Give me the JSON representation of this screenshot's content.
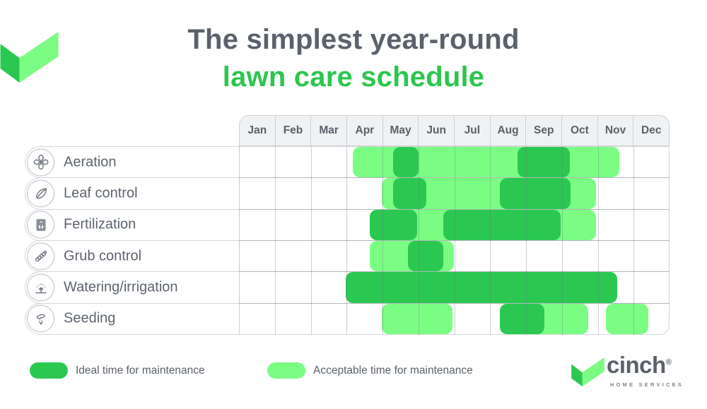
{
  "title": {
    "line1": "The simplest year-round",
    "line2": "lawn care schedule"
  },
  "colors": {
    "ideal_green": "#2bc851",
    "acceptable_green": "#7bfc83",
    "title_gray": "#5b616b",
    "title_green": "#2dc64f",
    "text_gray": "#5a6069",
    "header_bg": "#f0f1f2",
    "grid_border": "#ccd0d5",
    "row_border": "#d5d9dd"
  },
  "months": [
    "Jan",
    "Feb",
    "Mar",
    "Apr",
    "May",
    "Jun",
    "Jul",
    "Aug",
    "Sep",
    "Oct",
    "Nov",
    "Dec"
  ],
  "legend": {
    "ideal_label": "Ideal time for maintenance",
    "acceptable_label": "Acceptable time for maintenance"
  },
  "brand": {
    "name": "cinch",
    "registered": "®",
    "tagline": "HOME SERVICES"
  },
  "chart_data": {
    "type": "gantt",
    "title": "The simplest year-round lawn care schedule",
    "x_axis": {
      "categories": [
        "Jan",
        "Feb",
        "Mar",
        "Apr",
        "May",
        "Jun",
        "Jul",
        "Aug",
        "Sep",
        "Oct",
        "Nov",
        "Dec"
      ],
      "domain": [
        0,
        12
      ],
      "note": "month-index scale: 0 = start of Jan, 12 = end of Dec"
    },
    "legend_position": "bottom-left",
    "series_legend": [
      {
        "name": "Ideal time for maintenance",
        "style": "dark-green"
      },
      {
        "name": "Acceptable time for maintenance",
        "style": "light-green"
      }
    ],
    "rows": [
      {
        "task": "Aeration",
        "icon": "fan-icon",
        "acceptable": [
          [
            3.18,
            10.6
          ]
        ],
        "ideal": [
          [
            4.3,
            5.0
          ],
          [
            7.76,
            9.22
          ]
        ]
      },
      {
        "task": "Leaf control",
        "icon": "leaf-icon",
        "acceptable": [
          [
            3.98,
            9.96
          ]
        ],
        "ideal": [
          [
            4.3,
            5.22
          ],
          [
            7.27,
            9.24
          ]
        ]
      },
      {
        "task": "Fertilization",
        "icon": "fertilizer-bag-icon",
        "acceptable": [
          [
            3.65,
            9.95
          ]
        ],
        "ideal": [
          [
            3.65,
            4.97
          ],
          [
            5.69,
            8.97
          ]
        ]
      },
      {
        "task": "Grub control",
        "icon": "grub-icon",
        "acceptable": [
          [
            3.65,
            5.99
          ]
        ],
        "ideal": [
          [
            4.71,
            5.69
          ]
        ]
      },
      {
        "task": "Watering/irrigation",
        "icon": "sprinkler-icon",
        "acceptable": [],
        "ideal": [
          [
            2.98,
            10.54
          ]
        ]
      },
      {
        "task": "Seeding",
        "icon": "seeding-hand-icon",
        "acceptable": [
          [
            3.98,
            5.95
          ],
          [
            7.27,
            9.73
          ],
          [
            10.22,
            11.4
          ]
        ],
        "ideal": [
          [
            7.27,
            8.51
          ]
        ]
      }
    ]
  }
}
